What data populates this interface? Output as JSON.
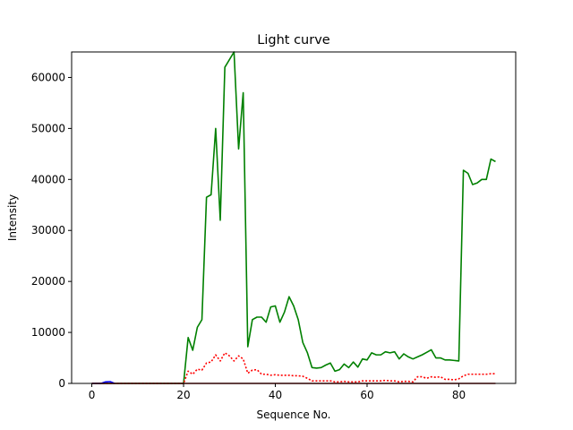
{
  "chart_data": {
    "type": "line",
    "title": "Light curve",
    "xlabel": "Sequence No.",
    "ylabel": "Intensity",
    "xlim": [
      -4.4,
      92.4
    ],
    "ylim": [
      0,
      65000
    ],
    "xticks": [
      0,
      20,
      40,
      60,
      80
    ],
    "yticks": [
      0,
      10000,
      20000,
      30000,
      40000,
      50000,
      60000
    ],
    "grid": false,
    "legend": "none",
    "series": [
      {
        "color": "#008000",
        "style": "solid",
        "x": [
          0,
          1,
          2,
          3,
          4,
          5,
          6,
          7,
          8,
          9,
          10,
          11,
          12,
          13,
          14,
          15,
          16,
          17,
          18,
          19,
          20,
          21,
          22,
          23,
          24,
          25,
          26,
          27,
          28,
          29,
          30,
          31,
          32,
          33,
          34,
          35,
          36,
          37,
          38,
          39,
          40,
          41,
          42,
          43,
          44,
          45,
          46,
          47,
          48,
          49,
          50,
          51,
          52,
          53,
          54,
          55,
          56,
          57,
          58,
          59,
          60,
          61,
          62,
          63,
          64,
          65,
          66,
          67,
          68,
          69,
          70,
          71,
          72,
          73,
          74,
          75,
          76,
          77,
          78,
          79,
          80,
          81,
          82,
          83,
          84,
          85,
          86,
          87,
          88
        ],
        "y": [
          0,
          0,
          0,
          0,
          0,
          0,
          0,
          0,
          0,
          0,
          0,
          0,
          0,
          0,
          0,
          0,
          0,
          0,
          0,
          0,
          0,
          9000,
          6500,
          11000,
          12500,
          36500,
          37000,
          50000,
          32000,
          62000,
          63500,
          65000,
          46000,
          57000,
          7200,
          12500,
          13000,
          13000,
          12000,
          15000,
          15200,
          12000,
          14000,
          17000,
          15200,
          12500,
          8000,
          6000,
          3100,
          3000,
          3100,
          3600,
          4000,
          2400,
          2700,
          3800,
          3100,
          4200,
          3200,
          4800,
          4600,
          6000,
          5600,
          5600,
          6200,
          6000,
          6200,
          4800,
          5800,
          5200,
          4800,
          5200,
          5600,
          6100,
          6600,
          5000,
          5000,
          4600,
          4600,
          4500,
          4400,
          41800,
          41200,
          39000,
          39300,
          40000,
          40000,
          44000,
          43500
        ]
      },
      {
        "color": "#ff0000",
        "style": "dotted",
        "x": [
          0,
          1,
          2,
          3,
          4,
          5,
          6,
          7,
          8,
          9,
          10,
          11,
          12,
          13,
          14,
          15,
          16,
          17,
          18,
          19,
          20,
          21,
          22,
          23,
          24,
          25,
          26,
          27,
          28,
          29,
          30,
          31,
          32,
          33,
          34,
          35,
          36,
          37,
          38,
          39,
          40,
          41,
          42,
          43,
          44,
          45,
          46,
          47,
          48,
          49,
          50,
          51,
          52,
          53,
          54,
          55,
          56,
          57,
          58,
          59,
          60,
          61,
          62,
          63,
          64,
          65,
          66,
          67,
          68,
          69,
          70,
          71,
          72,
          73,
          74,
          75,
          76,
          77,
          78,
          79,
          80,
          81,
          82,
          83,
          84,
          85,
          86,
          87,
          88
        ],
        "y": [
          0,
          0,
          0,
          0,
          0,
          0,
          0,
          0,
          0,
          0,
          0,
          0,
          0,
          0,
          0,
          0,
          0,
          0,
          0,
          0,
          0,
          2400,
          1800,
          2800,
          2600,
          4000,
          4200,
          5600,
          4400,
          6000,
          5400,
          4400,
          5400,
          4800,
          2000,
          2600,
          2700,
          1800,
          1800,
          1600,
          1700,
          1600,
          1600,
          1600,
          1500,
          1500,
          1400,
          1000,
          500,
          500,
          500,
          500,
          500,
          300,
          300,
          400,
          300,
          300,
          300,
          500,
          500,
          500,
          500,
          500,
          600,
          500,
          500,
          300,
          400,
          400,
          300,
          1300,
          1300,
          1000,
          1300,
          1200,
          1300,
          800,
          800,
          700,
          900,
          1500,
          1800,
          1800,
          1800,
          1800,
          1800,
          1900,
          1900
        ]
      },
      {
        "color": "#0000ff",
        "style": "solid",
        "x": [
          0,
          1,
          2,
          3,
          4,
          5
        ],
        "y": [
          0,
          0,
          0,
          300,
          350,
          0
        ]
      },
      {
        "color": "#8b0000",
        "style": "solid",
        "x": [
          0,
          88
        ],
        "y": [
          0,
          0
        ]
      }
    ]
  }
}
